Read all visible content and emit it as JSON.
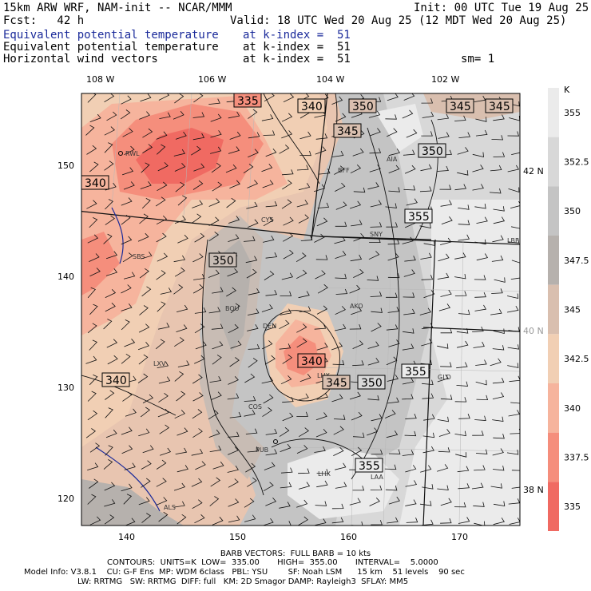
{
  "header": {
    "model": "15km ARW WRF, NAM-init -- NCAR/MMM",
    "init": "Init: 00 UTC Tue 19 Aug 25",
    "fcst": "Fcst:   42 h",
    "valid": "Valid: 18 UTC Wed 20 Aug 25 (12 MDT Wed 20 Aug 25)",
    "field1_name": "Equivalent potential temperature",
    "field1_level": "at k-index =  51",
    "field2_name": "Equivalent potential temperature",
    "field2_level": "at k-index =  51",
    "field3_name": "Horizontal wind vectors",
    "field3_level": "at k-index =  51",
    "smoothing": "sm= 1",
    "field1_color": "#1a2a9a"
  },
  "map": {
    "top_lon_labels": [
      "108 W",
      "106 W",
      "104 W",
      "102 W"
    ],
    "right_lat_labels": [
      "42 N",
      "40 N",
      "38 N"
    ],
    "left_grid_labels": [
      "150",
      "140",
      "130",
      "120"
    ],
    "bottom_grid_labels": [
      "140",
      "150",
      "160",
      "170"
    ],
    "cities": [
      "RWL",
      "BFF",
      "AIA",
      "CYS",
      "SNY",
      "LBF",
      "SBS",
      "BOU",
      "AKO",
      "DEN",
      "LXV",
      "LHX",
      "GLD",
      "COS",
      "PUB",
      "LAA",
      "ALS",
      "LHX"
    ],
    "contour_labels": [
      "335",
      "340",
      "350",
      "345",
      "345",
      "345",
      "350",
      "340",
      "355",
      "350",
      "340",
      "340",
      "345",
      "350",
      "355",
      "355"
    ]
  },
  "colorbar": {
    "unit": "K",
    "labels": [
      "355",
      "352.5",
      "350",
      "347.5",
      "345",
      "342.5",
      "340",
      "337.5",
      "335"
    ],
    "colors": [
      "#ebebeb",
      "#d8d8d8",
      "#c4c4c4",
      "#b6b1ad",
      "#d9bfaf",
      "#f1cfb4",
      "#f6b49d",
      "#f58e7c",
      "#f06a62"
    ]
  },
  "footer": {
    "line1": "BARB VECTORS:  FULL BARB = 10 kts",
    "line2": "CONTOURS:  UNITS=K  LOW=  335.00       HIGH=  355.00       INTERVAL=    5.0000",
    "line3": "Model Info: V3.8.1    CU: G-F Ens  MP: WDM 6class   PBL: YSU        SF: Noah LSM      15 km    51 levels    90 sec",
    "line4": "LW: RRTMG   SW: RRTMG  DIFF: full   KM: 2D Smagor DAMP: Rayleigh3  SFLAY: MM5"
  }
}
